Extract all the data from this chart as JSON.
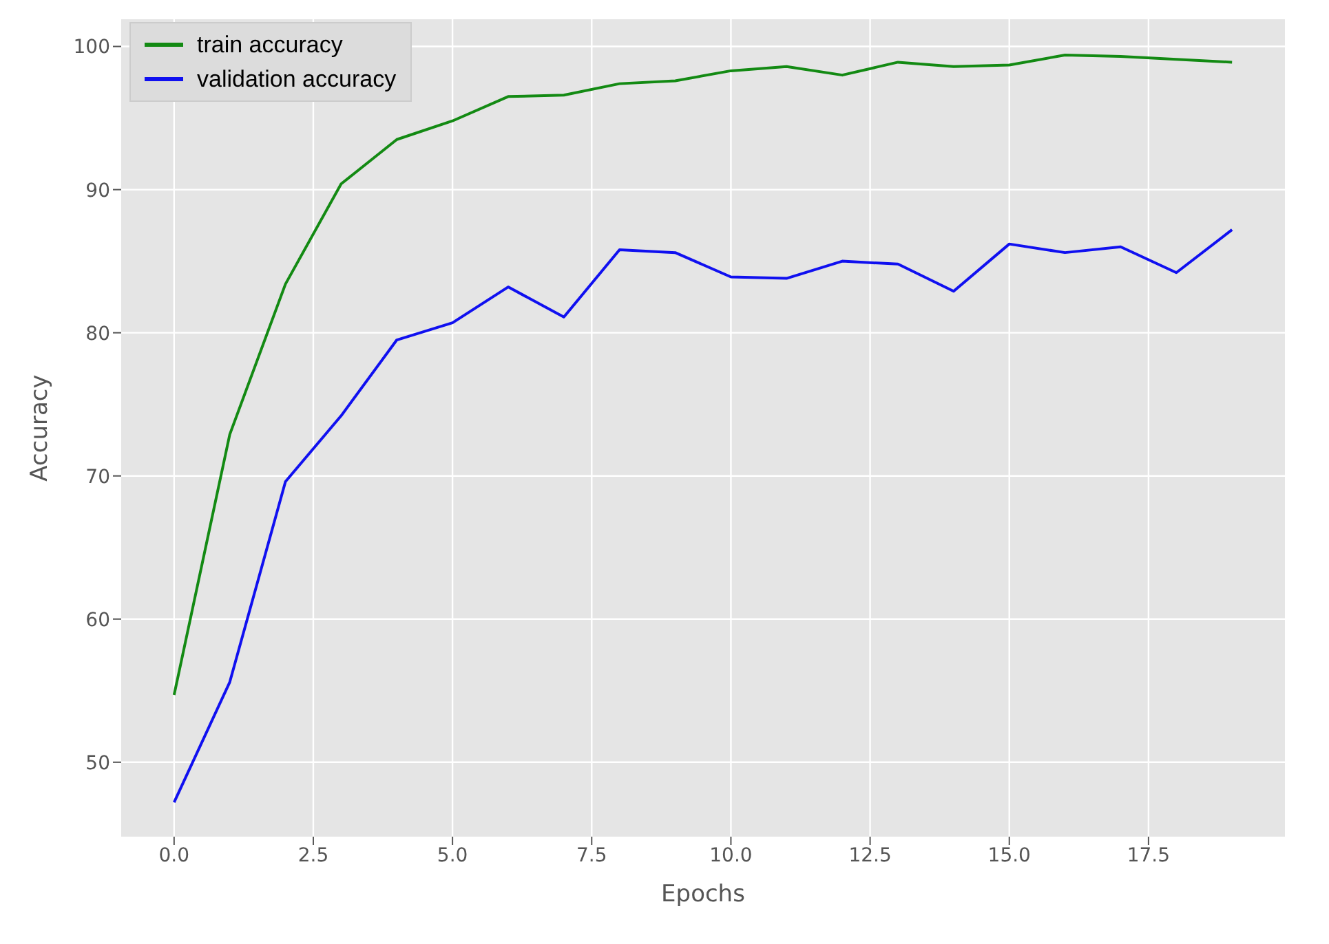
{
  "chart_data": {
    "type": "line",
    "xlabel": "Epochs",
    "ylabel": "Accuracy",
    "x": [
      0,
      1,
      2,
      3,
      4,
      5,
      6,
      7,
      8,
      9,
      10,
      11,
      12,
      13,
      14,
      15,
      16,
      17,
      18,
      19
    ],
    "series": [
      {
        "name": "train accuracy",
        "color": "#138a13",
        "values": [
          54.7,
          72.9,
          83.4,
          90.4,
          93.5,
          94.8,
          96.5,
          96.6,
          97.4,
          97.6,
          98.3,
          98.6,
          98.0,
          98.9,
          98.6,
          98.7,
          99.4,
          99.3,
          99.1,
          98.9
        ]
      },
      {
        "name": "validation accuracy",
        "color": "#1010f0",
        "values": [
          47.2,
          55.6,
          69.6,
          74.2,
          79.5,
          80.7,
          83.2,
          81.1,
          85.8,
          85.6,
          83.9,
          83.8,
          85.0,
          84.8,
          82.9,
          86.2,
          85.6,
          86.0,
          84.2,
          87.2
        ]
      }
    ],
    "xlim": [
      -0.95,
      19.95
    ],
    "ylim": [
      44.8,
      101.9
    ],
    "xticks": [
      {
        "value": 0,
        "label": "0.0"
      },
      {
        "value": 2.5,
        "label": "2.5"
      },
      {
        "value": 5,
        "label": "5.0"
      },
      {
        "value": 7.5,
        "label": "7.5"
      },
      {
        "value": 10,
        "label": "10.0"
      },
      {
        "value": 12.5,
        "label": "12.5"
      },
      {
        "value": 15,
        "label": "15.0"
      },
      {
        "value": 17.5,
        "label": "17.5"
      }
    ],
    "yticks": [
      50,
      60,
      70,
      80,
      90,
      100
    ],
    "grid": true,
    "legend": "top left",
    "marker": "none",
    "line_style": "solid"
  }
}
